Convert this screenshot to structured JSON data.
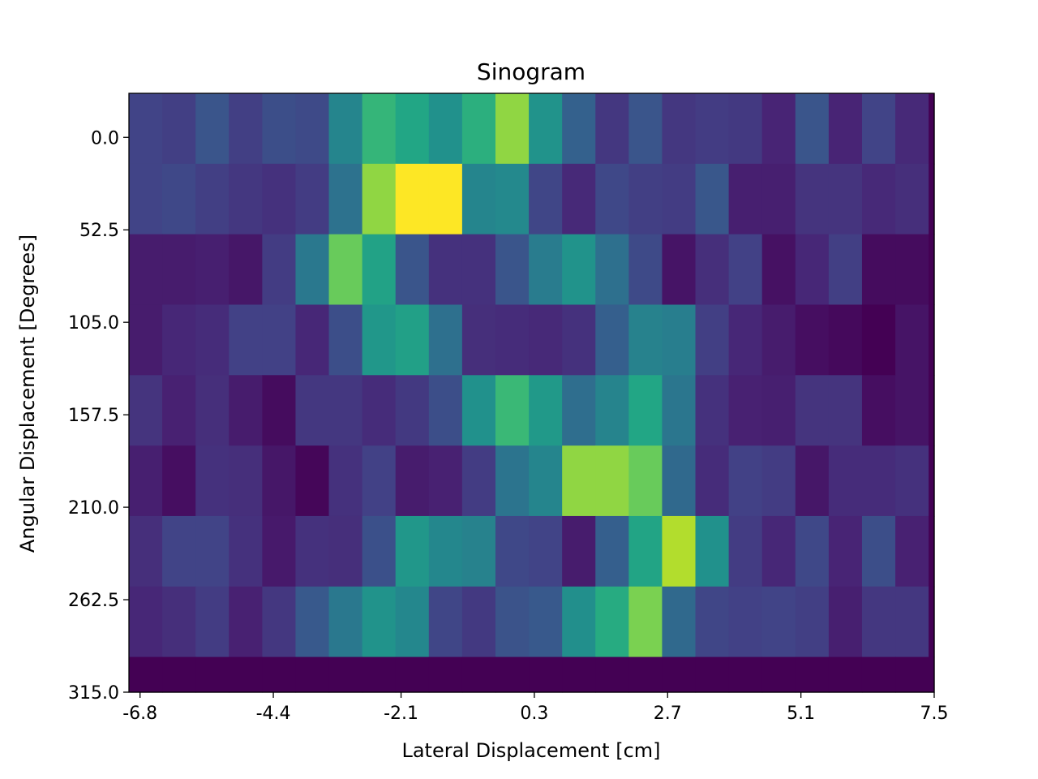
{
  "chart_data": {
    "type": "heatmap",
    "title": "Sinogram",
    "xlabel": "Lateral Displacement [cm]",
    "ylabel": "Angular Displacement [Degrees]",
    "colormap": "viridis",
    "xlim": [
      -7.0,
      7.5
    ],
    "ylim": [
      315.0,
      -25.0
    ],
    "x_ticks": [
      "-6.8",
      "-4.4",
      "-2.1",
      "0.3",
      "2.7",
      "5.1",
      "7.5"
    ],
    "x_tick_values": [
      -6.8,
      -4.4,
      -2.1,
      0.3,
      2.7,
      5.1,
      7.5
    ],
    "y_ticks": [
      "0.0",
      "52.5",
      "105.0",
      "157.5",
      "210.0",
      "262.5",
      "315.0"
    ],
    "y_tick_values": [
      0.0,
      52.5,
      105.0,
      157.5,
      210.0,
      262.5,
      315.0
    ],
    "x_bin_width": 0.6,
    "y_bin_height": 40,
    "grid": false,
    "values": [
      [
        0.25,
        0.23,
        0.33,
        0.23,
        0.3,
        0.28,
        0.57,
        0.79,
        0.74,
        0.63,
        0.77,
        0.9,
        0.64,
        0.39,
        0.2,
        0.33,
        0.2,
        0.22,
        0.21,
        0.13,
        0.33,
        0.13,
        0.25,
        0.15,
        0.0
      ],
      [
        0.25,
        0.27,
        0.23,
        0.2,
        0.18,
        0.22,
        0.47,
        0.9,
        1.0,
        1.0,
        0.57,
        0.59,
        0.26,
        0.15,
        0.27,
        0.23,
        0.22,
        0.34,
        0.11,
        0.11,
        0.19,
        0.19,
        0.15,
        0.17,
        0.0
      ],
      [
        0.1,
        0.1,
        0.11,
        0.08,
        0.22,
        0.5,
        0.86,
        0.72,
        0.33,
        0.18,
        0.18,
        0.33,
        0.52,
        0.64,
        0.46,
        0.28,
        0.07,
        0.17,
        0.24,
        0.06,
        0.14,
        0.23,
        0.04,
        0.04,
        0.0
      ],
      [
        0.1,
        0.14,
        0.16,
        0.24,
        0.24,
        0.14,
        0.3,
        0.66,
        0.71,
        0.46,
        0.17,
        0.16,
        0.15,
        0.18,
        0.38,
        0.55,
        0.53,
        0.23,
        0.14,
        0.1,
        0.05,
        0.03,
        0.0,
        0.07,
        0.0
      ],
      [
        0.19,
        0.12,
        0.17,
        0.1,
        0.04,
        0.2,
        0.2,
        0.16,
        0.21,
        0.3,
        0.63,
        0.8,
        0.67,
        0.45,
        0.56,
        0.74,
        0.49,
        0.18,
        0.12,
        0.11,
        0.19,
        0.19,
        0.05,
        0.07,
        0.0
      ],
      [
        0.11,
        0.05,
        0.18,
        0.17,
        0.08,
        0.02,
        0.18,
        0.24,
        0.1,
        0.12,
        0.22,
        0.48,
        0.57,
        0.9,
        0.9,
        0.86,
        0.43,
        0.16,
        0.24,
        0.22,
        0.08,
        0.16,
        0.16,
        0.18,
        0.0
      ],
      [
        0.17,
        0.25,
        0.25,
        0.18,
        0.09,
        0.18,
        0.17,
        0.31,
        0.66,
        0.58,
        0.55,
        0.27,
        0.25,
        0.1,
        0.38,
        0.73,
        0.93,
        0.63,
        0.22,
        0.14,
        0.27,
        0.13,
        0.3,
        0.12,
        0.0
      ],
      [
        0.14,
        0.17,
        0.22,
        0.12,
        0.2,
        0.35,
        0.5,
        0.64,
        0.58,
        0.26,
        0.21,
        0.32,
        0.35,
        0.62,
        0.76,
        0.88,
        0.43,
        0.26,
        0.24,
        0.25,
        0.23,
        0.11,
        0.2,
        0.2,
        0.0
      ],
      [
        0.0,
        0.0,
        0.0,
        0.0,
        0.0,
        0.0,
        0.0,
        0.0,
        0.0,
        0.0,
        0.0,
        0.0,
        0.0,
        0.0,
        0.0,
        0.0,
        0.0,
        0.0,
        0.0,
        0.0,
        0.0,
        0.0,
        0.0,
        0.0,
        0.0
      ]
    ]
  }
}
